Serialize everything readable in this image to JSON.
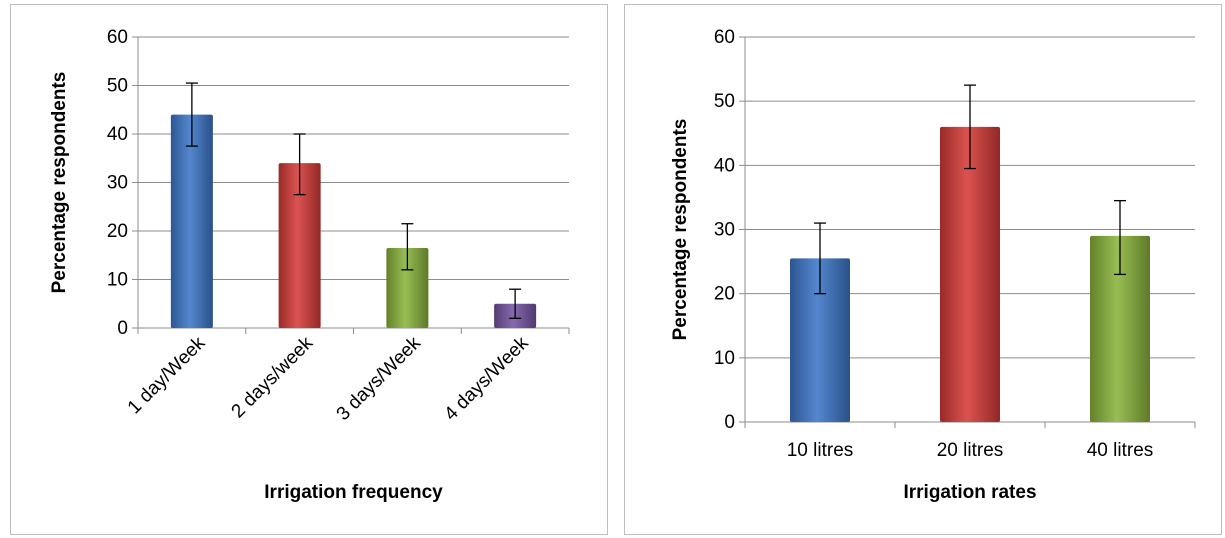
{
  "chart_data": [
    {
      "type": "bar",
      "xlabel": "Irrigation frequency",
      "ylabel": "Percentage respondents",
      "ylim": [
        0,
        60
      ],
      "yticks": [
        0,
        10,
        20,
        30,
        40,
        50,
        60
      ],
      "grid": true,
      "categories": [
        "1 day/Week",
        "2 days/week",
        "3 days/Week",
        "4 days/Week"
      ],
      "values": [
        44,
        34,
        16.5,
        5
      ],
      "error_low": [
        37.5,
        27.5,
        12,
        2
      ],
      "error_high": [
        50.5,
        40,
        21.5,
        8
      ],
      "bar_colors": [
        "#3d77c9",
        "#d63b38",
        "#8ab43c",
        "#7654a3"
      ],
      "tick_label_rotation": -45
    },
    {
      "type": "bar",
      "xlabel": "Irrigation rates",
      "ylabel": "Percentage respondents",
      "ylim": [
        0,
        60
      ],
      "yticks": [
        0,
        10,
        20,
        30,
        40,
        50,
        60
      ],
      "grid": true,
      "categories": [
        "10 litres",
        "20 litres",
        "40 litres"
      ],
      "values": [
        25.5,
        46,
        29
      ],
      "error_low": [
        20,
        39.5,
        23
      ],
      "error_high": [
        31,
        52.5,
        34.5
      ],
      "bar_colors": [
        "#3d77c9",
        "#d63b38",
        "#8ab43c"
      ],
      "tick_label_rotation": 0
    }
  ]
}
